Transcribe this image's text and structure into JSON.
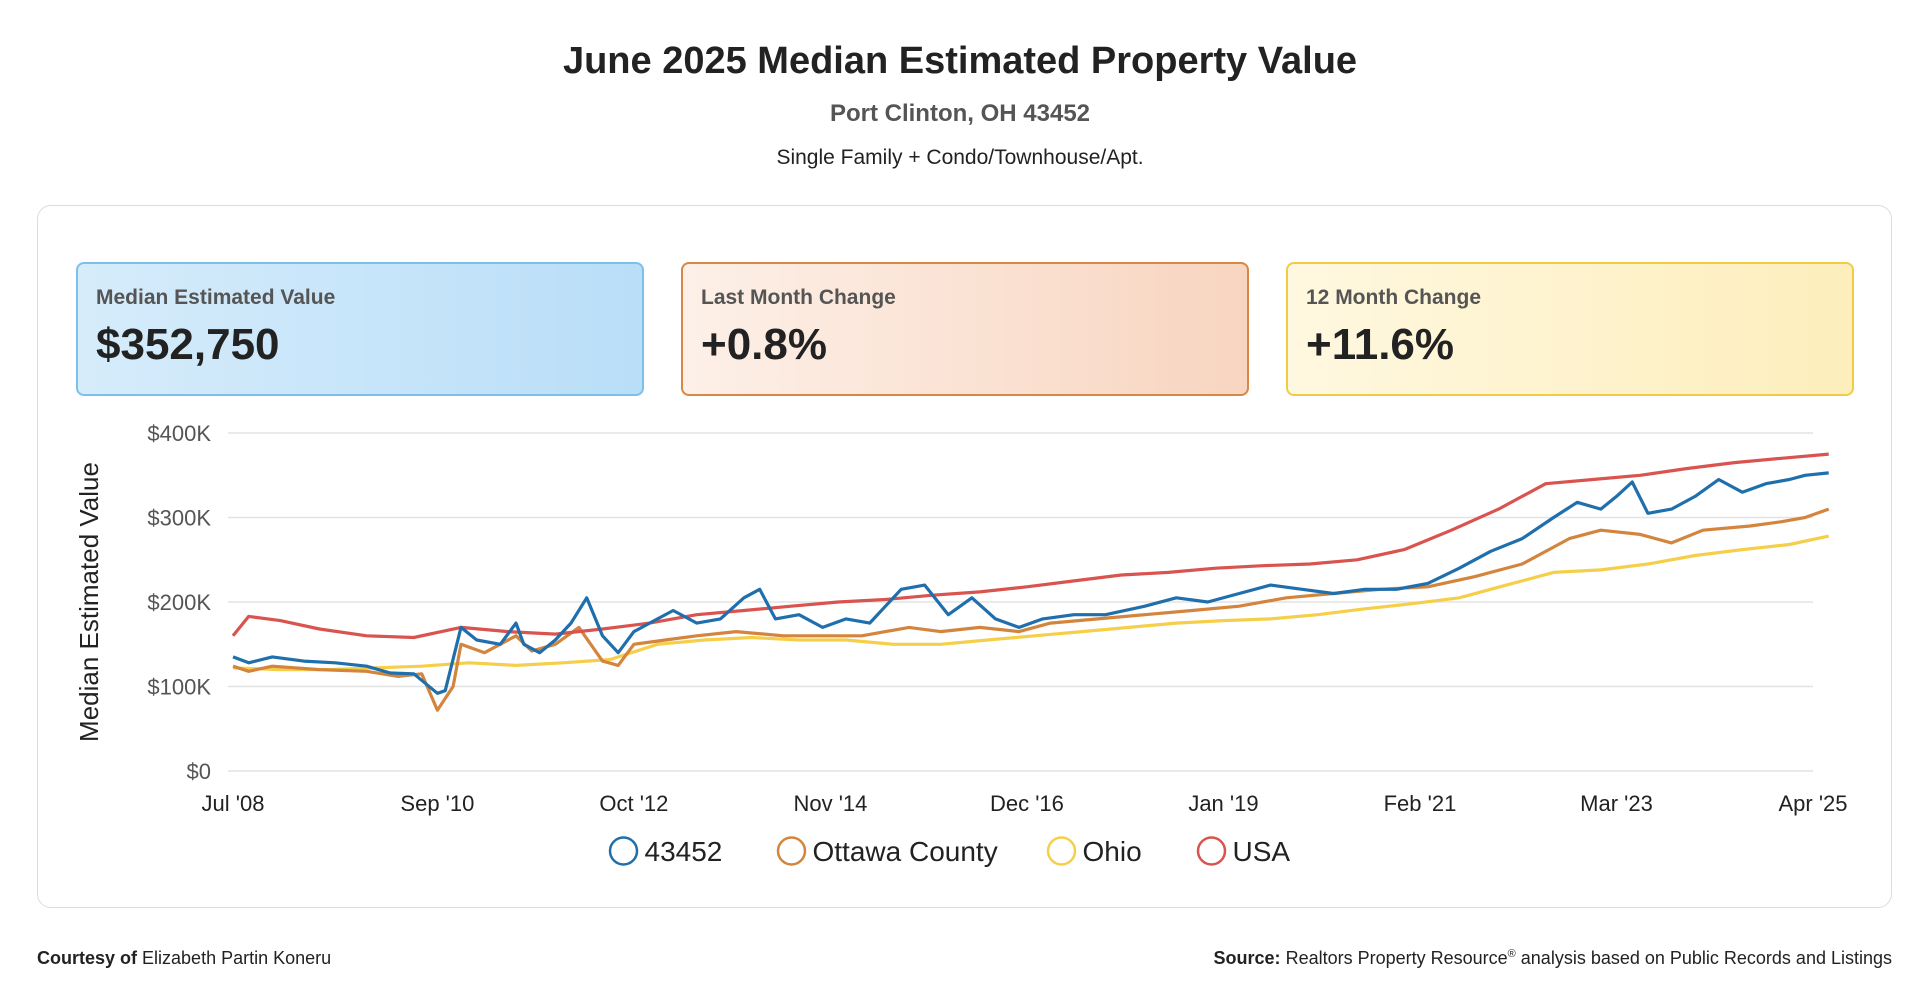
{
  "header": {
    "title": "June 2025 Median Estimated Property Value",
    "location": "Port Clinton, OH 43452",
    "property_types": "Single Family + Condo/Townhouse/Apt."
  },
  "cards": [
    {
      "label": "Median Estimated Value",
      "value": "$352,750"
    },
    {
      "label": "Last Month Change",
      "value": "+0.8%"
    },
    {
      "label": "12 Month Change",
      "value": "+11.6%"
    }
  ],
  "footer": {
    "courtesy_label": "Courtesy of",
    "courtesy_name": "Elizabeth Partin Koneru",
    "source_label": "Source:",
    "source_text": "Realtors Property Resource",
    "source_mark": "®",
    "source_rest": " analysis based on Public Records and Listings"
  },
  "colors": {
    "43452": "#1f6fad",
    "Ottawa County": "#d4853d",
    "Ohio": "#f5cf4a",
    "USA": "#d9534f"
  },
  "chart_data": {
    "type": "line",
    "title": "",
    "xlabel": "",
    "ylabel": "Median Estimated Value",
    "ylim": [
      0,
      400000
    ],
    "yticks": [
      0,
      100000,
      200000,
      300000,
      400000
    ],
    "ytick_labels": [
      "$0",
      "$100K",
      "$200K",
      "$300K",
      "$400K"
    ],
    "xlim": [
      "2008-07",
      "2025-06"
    ],
    "xticks": [
      "2008-07",
      "2010-09",
      "2012-10",
      "2014-11",
      "2016-12",
      "2019-01",
      "2021-02",
      "2023-03",
      "2025-04"
    ],
    "xtick_labels": [
      "Jul '08",
      "Sep '10",
      "Oct '12",
      "Nov '14",
      "Dec '16",
      "Jan '19",
      "Feb '21",
      "Mar '23",
      "Apr '25"
    ],
    "grid": true,
    "legend_position": "bottom",
    "series": [
      {
        "name": "43452",
        "points": [
          [
            "2008-07",
            135000
          ],
          [
            "2008-09",
            128000
          ],
          [
            "2008-12",
            135000
          ],
          [
            "2009-04",
            130000
          ],
          [
            "2009-08",
            128000
          ],
          [
            "2009-12",
            124000
          ],
          [
            "2010-03",
            116000
          ],
          [
            "2010-06",
            115000
          ],
          [
            "2010-09",
            92000
          ],
          [
            "2010-10",
            95000
          ],
          [
            "2010-12",
            170000
          ],
          [
            "2011-02",
            155000
          ],
          [
            "2011-05",
            150000
          ],
          [
            "2011-07",
            175000
          ],
          [
            "2011-08",
            150000
          ],
          [
            "2011-10",
            140000
          ],
          [
            "2011-12",
            155000
          ],
          [
            "2012-02",
            175000
          ],
          [
            "2012-04",
            205000
          ],
          [
            "2012-06",
            160000
          ],
          [
            "2012-08",
            140000
          ],
          [
            "2012-10",
            165000
          ],
          [
            "2013-01",
            180000
          ],
          [
            "2013-03",
            190000
          ],
          [
            "2013-06",
            175000
          ],
          [
            "2013-09",
            180000
          ],
          [
            "2013-12",
            205000
          ],
          [
            "2014-02",
            215000
          ],
          [
            "2014-04",
            180000
          ],
          [
            "2014-07",
            185000
          ],
          [
            "2014-10",
            170000
          ],
          [
            "2015-01",
            180000
          ],
          [
            "2015-04",
            175000
          ],
          [
            "2015-08",
            215000
          ],
          [
            "2015-11",
            220000
          ],
          [
            "2016-02",
            185000
          ],
          [
            "2016-05",
            205000
          ],
          [
            "2016-08",
            180000
          ],
          [
            "2016-11",
            170000
          ],
          [
            "2017-02",
            180000
          ],
          [
            "2017-06",
            185000
          ],
          [
            "2017-10",
            185000
          ],
          [
            "2018-03",
            195000
          ],
          [
            "2018-07",
            205000
          ],
          [
            "2018-11",
            200000
          ],
          [
            "2019-03",
            210000
          ],
          [
            "2019-07",
            220000
          ],
          [
            "2019-11",
            215000
          ],
          [
            "2020-03",
            210000
          ],
          [
            "2020-07",
            215000
          ],
          [
            "2020-11",
            215000
          ],
          [
            "2021-03",
            222000
          ],
          [
            "2021-07",
            240000
          ],
          [
            "2021-11",
            260000
          ],
          [
            "2022-03",
            275000
          ],
          [
            "2022-07",
            300000
          ],
          [
            "2022-10",
            318000
          ],
          [
            "2023-01",
            310000
          ],
          [
            "2023-03",
            325000
          ],
          [
            "2023-05",
            342000
          ],
          [
            "2023-07",
            305000
          ],
          [
            "2023-10",
            310000
          ],
          [
            "2024-01",
            325000
          ],
          [
            "2024-04",
            345000
          ],
          [
            "2024-07",
            330000
          ],
          [
            "2024-10",
            340000
          ],
          [
            "2025-01",
            345000
          ],
          [
            "2025-03",
            350000
          ],
          [
            "2025-06",
            352750
          ]
        ]
      },
      {
        "name": "Ottawa County",
        "points": [
          [
            "2008-07",
            124000
          ],
          [
            "2008-09",
            118000
          ],
          [
            "2008-12",
            124000
          ],
          [
            "2009-06",
            120000
          ],
          [
            "2009-12",
            118000
          ],
          [
            "2010-04",
            112000
          ],
          [
            "2010-07",
            115000
          ],
          [
            "2010-09",
            72000
          ],
          [
            "2010-11",
            100000
          ],
          [
            "2010-12",
            150000
          ],
          [
            "2011-03",
            140000
          ],
          [
            "2011-07",
            160000
          ],
          [
            "2011-09",
            142000
          ],
          [
            "2011-12",
            150000
          ],
          [
            "2012-03",
            170000
          ],
          [
            "2012-06",
            130000
          ],
          [
            "2012-08",
            125000
          ],
          [
            "2012-10",
            150000
          ],
          [
            "2013-02",
            155000
          ],
          [
            "2013-06",
            160000
          ],
          [
            "2013-11",
            165000
          ],
          [
            "2014-05",
            160000
          ],
          [
            "2014-10",
            160000
          ],
          [
            "2015-03",
            160000
          ],
          [
            "2015-09",
            170000
          ],
          [
            "2016-01",
            165000
          ],
          [
            "2016-06",
            170000
          ],
          [
            "2016-11",
            165000
          ],
          [
            "2017-03",
            175000
          ],
          [
            "2017-09",
            180000
          ],
          [
            "2018-03",
            185000
          ],
          [
            "2018-09",
            190000
          ],
          [
            "2019-03",
            195000
          ],
          [
            "2019-09",
            205000
          ],
          [
            "2020-03",
            210000
          ],
          [
            "2020-09",
            215000
          ],
          [
            "2021-03",
            218000
          ],
          [
            "2021-09",
            230000
          ],
          [
            "2022-03",
            245000
          ],
          [
            "2022-09",
            275000
          ],
          [
            "2023-01",
            285000
          ],
          [
            "2023-06",
            280000
          ],
          [
            "2023-10",
            270000
          ],
          [
            "2024-02",
            285000
          ],
          [
            "2024-08",
            290000
          ],
          [
            "2024-12",
            295000
          ],
          [
            "2025-03",
            300000
          ],
          [
            "2025-06",
            310000
          ]
        ]
      },
      {
        "name": "Ohio",
        "points": [
          [
            "2008-07",
            122000
          ],
          [
            "2009-01",
            120000
          ],
          [
            "2009-07",
            120000
          ],
          [
            "2010-01",
            122000
          ],
          [
            "2010-07",
            124000
          ],
          [
            "2011-01",
            128000
          ],
          [
            "2011-07",
            125000
          ],
          [
            "2012-01",
            128000
          ],
          [
            "2012-07",
            132000
          ],
          [
            "2013-01",
            150000
          ],
          [
            "2013-07",
            155000
          ],
          [
            "2014-01",
            158000
          ],
          [
            "2014-07",
            155000
          ],
          [
            "2015-01",
            155000
          ],
          [
            "2015-07",
            150000
          ],
          [
            "2016-01",
            150000
          ],
          [
            "2016-07",
            155000
          ],
          [
            "2017-01",
            160000
          ],
          [
            "2017-07",
            165000
          ],
          [
            "2018-01",
            170000
          ],
          [
            "2018-07",
            175000
          ],
          [
            "2019-01",
            178000
          ],
          [
            "2019-07",
            180000
          ],
          [
            "2020-01",
            185000
          ],
          [
            "2020-07",
            192000
          ],
          [
            "2021-01",
            198000
          ],
          [
            "2021-07",
            205000
          ],
          [
            "2022-01",
            220000
          ],
          [
            "2022-07",
            235000
          ],
          [
            "2023-01",
            238000
          ],
          [
            "2023-07",
            245000
          ],
          [
            "2024-01",
            255000
          ],
          [
            "2024-07",
            262000
          ],
          [
            "2025-01",
            268000
          ],
          [
            "2025-06",
            278000
          ]
        ]
      },
      {
        "name": "USA",
        "points": [
          [
            "2008-07",
            160000
          ],
          [
            "2008-09",
            183000
          ],
          [
            "2009-01",
            178000
          ],
          [
            "2009-06",
            168000
          ],
          [
            "2009-12",
            160000
          ],
          [
            "2010-06",
            158000
          ],
          [
            "2010-12",
            170000
          ],
          [
            "2011-06",
            165000
          ],
          [
            "2011-12",
            162000
          ],
          [
            "2012-06",
            168000
          ],
          [
            "2012-12",
            175000
          ],
          [
            "2013-06",
            185000
          ],
          [
            "2013-12",
            190000
          ],
          [
            "2014-06",
            195000
          ],
          [
            "2014-12",
            200000
          ],
          [
            "2015-06",
            203000
          ],
          [
            "2015-12",
            208000
          ],
          [
            "2016-06",
            212000
          ],
          [
            "2016-12",
            218000
          ],
          [
            "2017-06",
            225000
          ],
          [
            "2017-12",
            232000
          ],
          [
            "2018-06",
            235000
          ],
          [
            "2018-12",
            240000
          ],
          [
            "2019-06",
            243000
          ],
          [
            "2019-12",
            245000
          ],
          [
            "2020-06",
            250000
          ],
          [
            "2020-12",
            262000
          ],
          [
            "2021-06",
            285000
          ],
          [
            "2021-12",
            310000
          ],
          [
            "2022-06",
            340000
          ],
          [
            "2022-12",
            345000
          ],
          [
            "2023-06",
            350000
          ],
          [
            "2023-12",
            358000
          ],
          [
            "2024-06",
            365000
          ],
          [
            "2024-12",
            370000
          ],
          [
            "2025-06",
            375000
          ]
        ]
      }
    ]
  }
}
